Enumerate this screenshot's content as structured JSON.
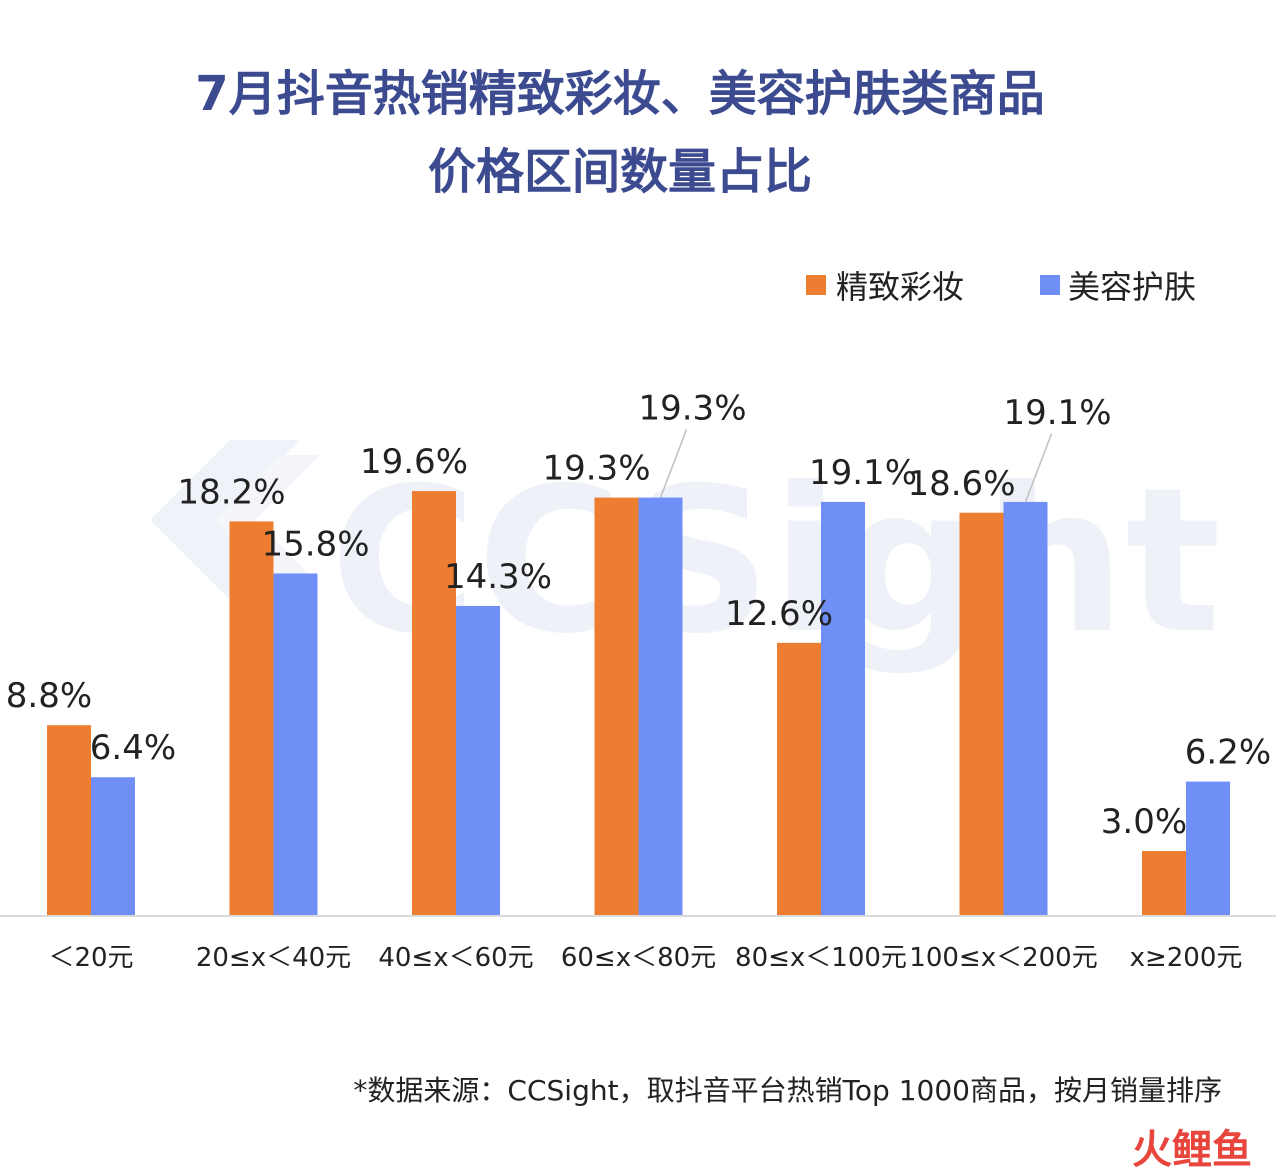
{
  "chart_data": {
    "type": "bar",
    "title_lines": [
      "7月抖音热销精致彩妆、美容护肤类商品",
      "价格区间数量占比"
    ],
    "categories": [
      "＜20元",
      "20≤x＜40元",
      "40≤x＜60元",
      "60≤x＜80元",
      "80≤x＜100元",
      "100≤x＜200元",
      "x≥200元"
    ],
    "series": [
      {
        "name": "精致彩妆",
        "color": "#ed7d31",
        "values": [
          8.8,
          18.2,
          19.6,
          19.3,
          12.6,
          18.6,
          3.0
        ],
        "labels": [
          "8.8%",
          "18.2%",
          "19.6%",
          "19.3%",
          "12.6%",
          "18.6%",
          "3.0%"
        ]
      },
      {
        "name": "美容护肤",
        "color": "#6f8ff7",
        "values": [
          6.4,
          15.8,
          14.3,
          19.3,
          19.1,
          19.1,
          6.2
        ],
        "labels": [
          "6.4%",
          "15.8%",
          "14.3%",
          "19.3%",
          "19.1%",
          "19.1%",
          "6.2%"
        ]
      }
    ],
    "ylim": [
      0,
      21
    ],
    "grid": false,
    "legend_position": "top-right",
    "xlabel": "",
    "ylabel": ""
  },
  "source_note": "*数据来源：CCSight，取抖音平台热销Top 1000商品，按月销量排序",
  "watermark": "CCSight",
  "brand_logo": "火鲤鱼"
}
